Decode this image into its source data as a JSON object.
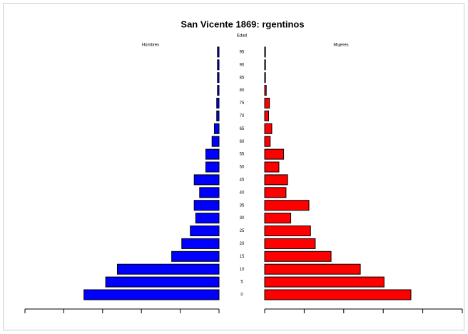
{
  "chart_data": {
    "type": "pyramid",
    "title": "San Vicente 1869:   rgentinos",
    "center_label": "Edad",
    "categories": [
      "0",
      "5",
      "10",
      "15",
      "20",
      "25",
      "30",
      "35",
      "40",
      "45",
      "50",
      "55",
      "60",
      "65",
      "70",
      "75",
      "80",
      "85",
      "90",
      "95"
    ],
    "series": [
      {
        "name": "Hombres",
        "color": "#0000ff",
        "values": [
          174,
          146,
          131,
          61,
          48,
          37,
          30,
          32,
          25,
          32,
          17,
          17,
          9,
          6,
          3,
          3,
          2,
          2,
          2,
          2
        ]
      },
      {
        "name": "Mujeres",
        "color": "#ff0000",
        "values": [
          185,
          151,
          121,
          84,
          64,
          58,
          33,
          56,
          27,
          29,
          18,
          24,
          7,
          9,
          5,
          6,
          2,
          1,
          1,
          1
        ]
      }
    ],
    "xlim": [
      0,
      250
    ],
    "xticks": [
      0,
      50,
      100,
      150,
      200,
      250
    ]
  }
}
